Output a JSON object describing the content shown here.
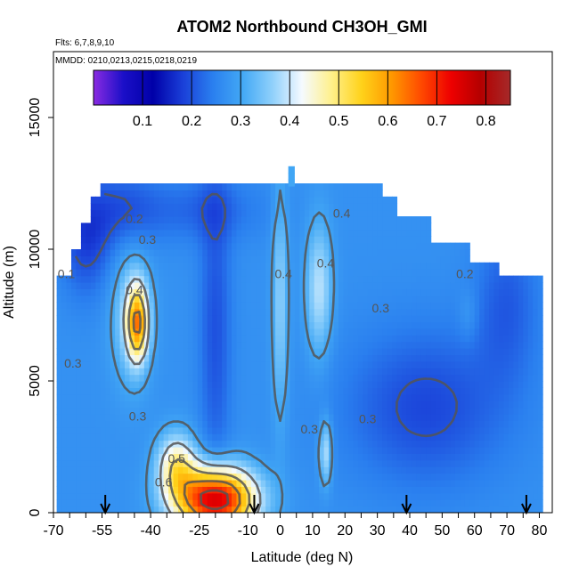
{
  "chart_data": {
    "type": "heatmap",
    "title": "ATOM2 Northbound CH3OH_GMI",
    "subtitle_lines": [
      "Flts: 6,7,8,9,10",
      "MMDD: 0210,0213,0215,0218,0219"
    ],
    "xlabel": "Latitude (deg N)",
    "ylabel": "Altitude (m)",
    "xlim": [
      -70,
      84
    ],
    "ylim": [
      0,
      17500
    ],
    "x_ticks": [
      -70,
      -55,
      -40,
      -25,
      -10,
      0,
      10,
      20,
      30,
      40,
      50,
      60,
      70,
      80
    ],
    "x_minor_ticks": [
      -65,
      -60,
      -50,
      -45,
      -35,
      -30,
      -20,
      -15,
      -5,
      5,
      15,
      25,
      35,
      45,
      55,
      65,
      75
    ],
    "y_ticks": [
      0,
      5000,
      10000,
      15000
    ],
    "colorbar": {
      "min": 0.0,
      "max": 0.85,
      "ticks": [
        0.1,
        0.2,
        0.3,
        0.4,
        0.5,
        0.6,
        0.7,
        0.8
      ],
      "colors": [
        "#8a2be2",
        "#1b0fc8",
        "#0000a8",
        "#1a3fd8",
        "#2a7fef",
        "#42a8f5",
        "#8fd0fb",
        "#f5faff",
        "#fff08a",
        "#ffd21a",
        "#ff9900",
        "#ff4a00",
        "#ee0000",
        "#b40000",
        "#a52a2a"
      ]
    },
    "contour_labels": [
      {
        "text": "0.2",
        "lat": -45,
        "alt": 11000
      },
      {
        "text": "0.3",
        "lat": -41,
        "alt": 10200
      },
      {
        "text": "0.1",
        "lat": -66,
        "alt": 8900
      },
      {
        "text": "0.4",
        "lat": -45,
        "alt": 8300
      },
      {
        "text": "0.3",
        "lat": -64,
        "alt": 5500
      },
      {
        "text": "0.3",
        "lat": -44,
        "alt": 3500
      },
      {
        "text": "0.4",
        "lat": 1,
        "alt": 8900
      },
      {
        "text": "0.4",
        "lat": 19,
        "alt": 11200
      },
      {
        "text": "0.4",
        "lat": 14,
        "alt": 9300
      },
      {
        "text": "0.3",
        "lat": 31,
        "alt": 7600
      },
      {
        "text": "0.2",
        "lat": 57,
        "alt": 8900
      },
      {
        "text": "0.3",
        "lat": 9,
        "alt": 3000
      },
      {
        "text": "0.3",
        "lat": 27,
        "alt": 3400
      },
      {
        "text": "0.5",
        "lat": -32,
        "alt": 1900
      },
      {
        "text": "0.6",
        "lat": -36,
        "alt": 1000
      }
    ],
    "flight_arrows_lat": [
      -54,
      -8,
      39,
      76
    ]
  }
}
